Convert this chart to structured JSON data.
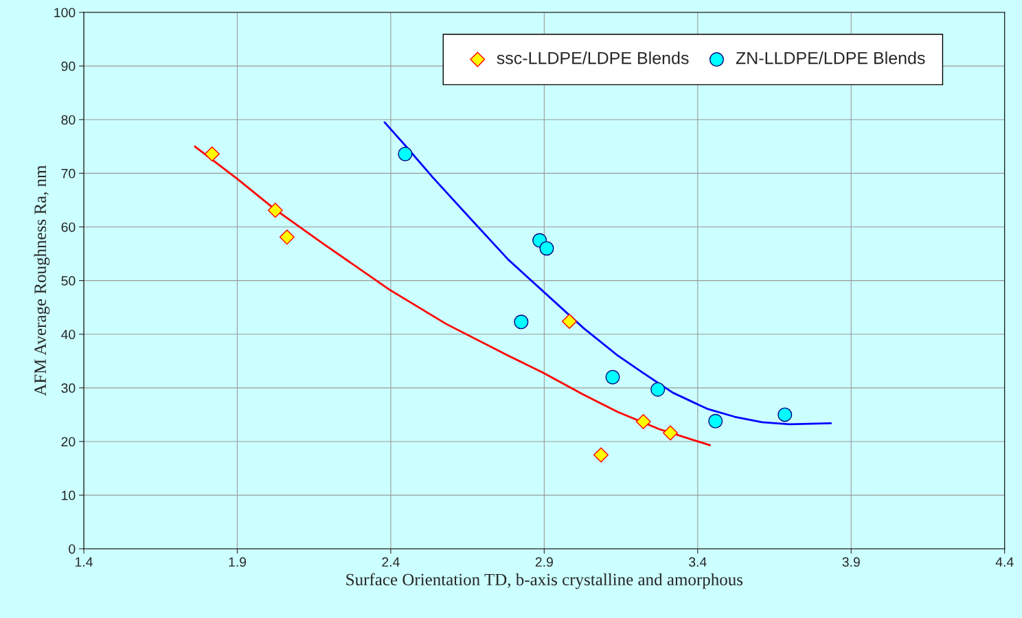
{
  "chart_data": {
    "type": "scatter",
    "xlabel": "Surface Orientation TD, b-axis crystalline and amorphous",
    "ylabel": "AFM Average Roughness Ra, nm",
    "xlim": [
      1.4,
      4.4
    ],
    "xticks": [
      1.4,
      1.9,
      2.4,
      2.9,
      3.4,
      3.9,
      4.4
    ],
    "ylim": [
      0,
      100
    ],
    "yticks": [
      0,
      10,
      20,
      30,
      40,
      50,
      60,
      70,
      80,
      90,
      100
    ],
    "grid": true,
    "legend": "top right",
    "series": [
      {
        "name": "ssc-LLDPE/LDPE Blends",
        "marker": "diamond",
        "color": "#ffff00",
        "x": [
          1.818,
          2.024,
          2.062,
          2.982,
          3.085,
          3.223,
          3.311
        ],
        "values": [
          73.6,
          63.1,
          58.1,
          42.4,
          17.5,
          23.7,
          21.6
        ]
      },
      {
        "name": "ZN-LLDPE/LDPE Blends",
        "marker": "circle",
        "color": "#00ffff",
        "x": [
          2.447,
          2.885,
          2.908,
          2.825,
          3.123,
          3.27,
          3.458,
          3.684
        ],
        "values": [
          73.6,
          57.5,
          56.0,
          42.3,
          32.0,
          29.7,
          23.8,
          25.0
        ]
      },
      {
        "type": "line",
        "color": "#ff0000",
        "x": [
          1.762,
          1.899,
          2.022,
          2.179,
          2.396,
          2.581,
          2.783,
          2.894,
          3.029,
          3.14,
          3.275,
          3.44
        ],
        "values": [
          75.0,
          69.0,
          63.3,
          56.9,
          48.3,
          41.9,
          36.0,
          32.9,
          28.7,
          25.5,
          22.3,
          19.3
        ]
      },
      {
        "type": "line",
        "color": "#0000ff",
        "x": [
          2.38,
          2.447,
          2.536,
          2.659,
          2.783,
          2.906,
          3.029,
          3.14,
          3.219,
          3.319,
          3.431,
          3.521,
          3.61,
          3.699,
          3.834
        ],
        "values": [
          79.5,
          75.2,
          69.3,
          61.6,
          53.9,
          47.5,
          41.1,
          36.0,
          32.9,
          29.1,
          26.1,
          24.6,
          23.6,
          23.2,
          23.4
        ]
      }
    ]
  }
}
